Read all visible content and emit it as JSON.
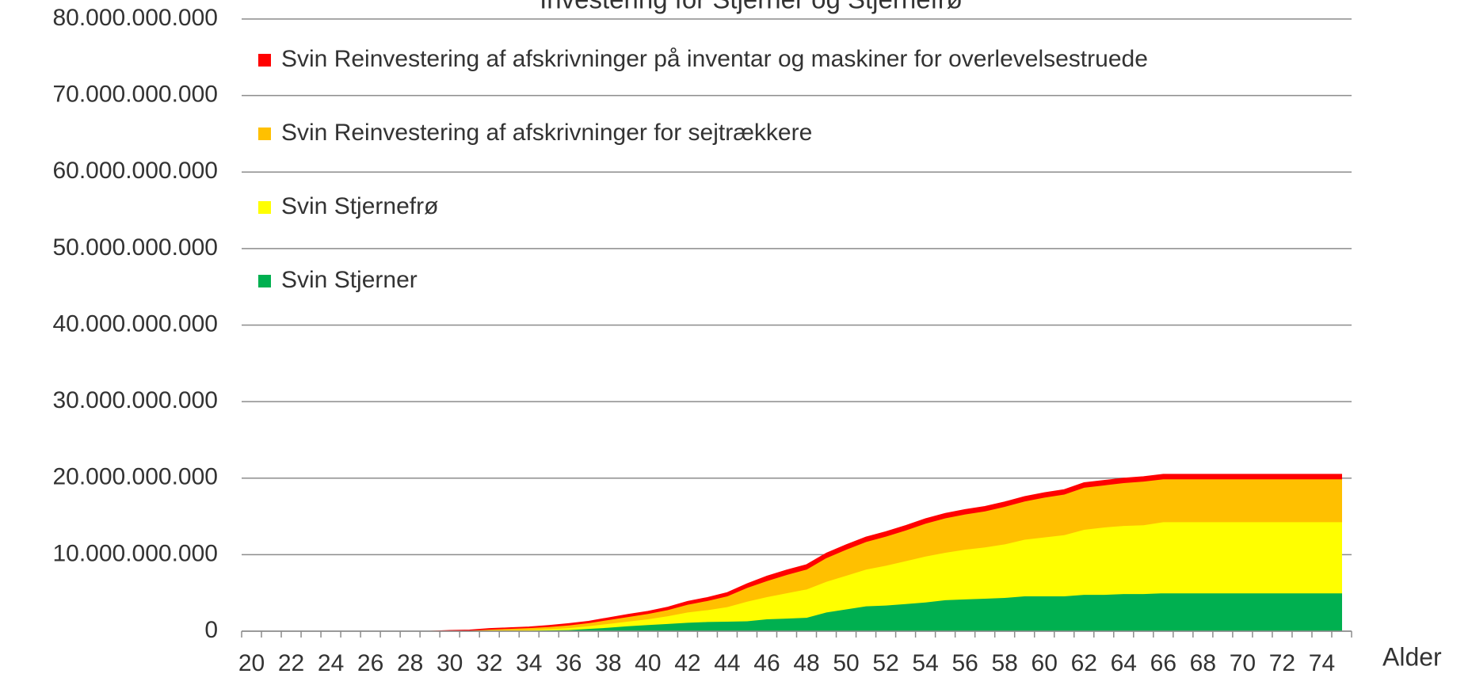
{
  "chart_data": {
    "type": "stacked_area",
    "title": "Investering for Stjerner og Stjernefrø",
    "x_label": "Alder",
    "categories": [
      20,
      null,
      22,
      null,
      24,
      null,
      26,
      null,
      28,
      null,
      30,
      null,
      32,
      null,
      34,
      null,
      36,
      null,
      38,
      null,
      40,
      null,
      42,
      null,
      44,
      null,
      46,
      null,
      48,
      null,
      50,
      null,
      52,
      null,
      54,
      null,
      56,
      null,
      58,
      null,
      60,
      null,
      62,
      null,
      64,
      null,
      66,
      null,
      68,
      null,
      70,
      null,
      72,
      null,
      74,
      null
    ],
    "series": [
      {
        "name": "Svin Stjerner",
        "color": "#00b050",
        "values": [
          0,
          0,
          0,
          0,
          0,
          0,
          0,
          0,
          0,
          0,
          0,
          20000000.0,
          50000000.0,
          80000000.0,
          100000000.0,
          150000000.0,
          200000000.0,
          350000000.0,
          500000000.0,
          700000000.0,
          850000000.0,
          1000000000.0,
          1150000000.0,
          1250000000.0,
          1300000000.0,
          1350000000.0,
          1600000000.0,
          1700000000.0,
          1800000000.0,
          2500000000.0,
          2900000000.0,
          3300000000.0,
          3400000000.0,
          3600000000.0,
          3800000000.0,
          4100000000.0,
          4200000000.0,
          4300000000.0,
          4400000000.0,
          4600000000.0,
          4600000000.0,
          4600000000.0,
          4800000000.0,
          4800000000.0,
          4900000000.0,
          4900000000.0,
          5000000000.0,
          5000000000.0,
          5000000000.0,
          5000000000.0,
          5000000000.0,
          5000000000.0,
          5000000000.0,
          5000000000.0,
          5000000000.0,
          5000000000.0
        ]
      },
      {
        "name": "Svin Stjernefrø",
        "color": "#ffff00",
        "values": [
          0,
          0,
          0,
          0,
          0,
          0,
          0,
          0,
          0,
          0,
          0,
          30000000.0,
          50000000.0,
          70000000.0,
          100000000.0,
          150000000.0,
          250000000.0,
          350000000.0,
          500000000.0,
          600000000.0,
          750000000.0,
          1000000000.0,
          1350000000.0,
          1550000000.0,
          1900000000.0,
          2550000000.0,
          2900000000.0,
          3300000000.0,
          3700000000.0,
          4000000000.0,
          4400000000.0,
          4800000000.0,
          5200000000.0,
          5600000000.0,
          6000000000.0,
          6200000000.0,
          6500000000.0,
          6700000000.0,
          7000000000.0,
          7400000000.0,
          7700000000.0,
          8000000000.0,
          8500000000.0,
          8800000000.0,
          8900000000.0,
          9000000000.0,
          9300000000.0,
          9300000000.0,
          9300000000.0,
          9300000000.0,
          9300000000.0,
          9300000000.0,
          9300000000.0,
          9300000000.0,
          9300000000.0,
          9300000000.0
        ]
      },
      {
        "name": "Svin Reinvestering af afskrivninger for sejtrækkere",
        "color": "#ffc000",
        "values": [
          0,
          0,
          0,
          0,
          0,
          0,
          0,
          0,
          0,
          0,
          50000000.0,
          50000000.0,
          150000000.0,
          200000000.0,
          250000000.0,
          300000000.0,
          350000000.0,
          400000000.0,
          500000000.0,
          600000000.0,
          700000000.0,
          800000000.0,
          1000000000.0,
          1200000000.0,
          1400000000.0,
          1800000000.0,
          2100000000.0,
          2400000000.0,
          2600000000.0,
          3100000000.0,
          3400000000.0,
          3600000000.0,
          3800000000.0,
          4000000000.0,
          4300000000.0,
          4500000000.0,
          4600000000.0,
          4700000000.0,
          4900000000.0,
          5000000000.0,
          5200000000.0,
          5300000000.0,
          5500000000.0,
          5500000000.0,
          5600000000.0,
          5700000000.0,
          5600000000.0,
          5600000000.0,
          5600000000.0,
          5600000000.0,
          5600000000.0,
          5600000000.0,
          5600000000.0,
          5600000000.0,
          5600000000.0,
          5600000000.0
        ]
      },
      {
        "name": "Svin Reinvestering af afskrivninger på inventar og maskiner for overlevelsestruede",
        "color": "#ff0000",
        "values": [
          0,
          0,
          0,
          0,
          0,
          0,
          0,
          0,
          0,
          0,
          50000000.0,
          50000000.0,
          100000000.0,
          100000000.0,
          100000000.0,
          150000000.0,
          200000000.0,
          200000000.0,
          250000000.0,
          300000000.0,
          300000000.0,
          350000000.0,
          400000000.0,
          400000000.0,
          450000000.0,
          500000000.0,
          600000000.0,
          600000000.0,
          600000000.0,
          600000000.0,
          600000000.0,
          600000000.0,
          600000000.0,
          600000000.0,
          600000000.0,
          600000000.0,
          600000000.0,
          600000000.0,
          600000000.0,
          600000000.0,
          600000000.0,
          600000000.0,
          600000000.0,
          600000000.0,
          600000000.0,
          600000000.0,
          600000000.0,
          600000000.0,
          600000000.0,
          600000000.0,
          600000000.0,
          600000000.0,
          600000000.0,
          600000000.0,
          600000000.0,
          600000000.0
        ]
      }
    ],
    "ylim": [
      0,
      80000000000
    ],
    "yticks": [
      0,
      {
        "value": 10000000000,
        "label": "10.000.000.000"
      },
      {
        "value": 20000000000,
        "label": "20.000.000.000"
      },
      {
        "value": 30000000000,
        "label": "30.000.000.000"
      },
      {
        "value": 40000000000,
        "label": "40.000.000.000"
      },
      {
        "value": 50000000000,
        "label": "50.000.000.000"
      },
      {
        "value": 60000000000,
        "label": "60.000.000.000"
      },
      {
        "value": 70000000000,
        "label": "70.000.000.000"
      },
      {
        "value": 80000000000,
        "label": "80.000.000.000"
      }
    ],
    "grid": true,
    "legend": "upper left"
  }
}
